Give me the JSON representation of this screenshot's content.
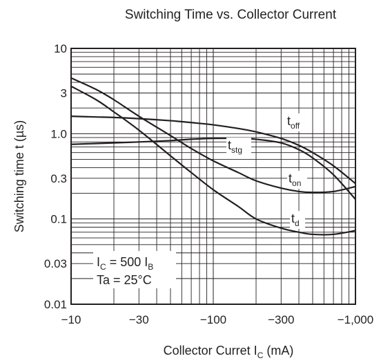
{
  "chart_data": {
    "type": "line",
    "title": "Switching Time vs. Collector Current",
    "xlabel": {
      "text": "Collector Curret  I",
      "sub": "C",
      "unit": "  (mA)"
    },
    "ylabel": "Switching time  t  (µs)",
    "xscale": "log",
    "yscale": "log",
    "xlim": [
      -10,
      -1000
    ],
    "ylim": [
      0.01,
      10
    ],
    "grid": true,
    "x_ticks": [
      {
        "value": -10,
        "label": "−10"
      },
      {
        "value": -30,
        "label": "−30"
      },
      {
        "value": -100,
        "label": "−100"
      },
      {
        "value": -300,
        "label": "−300"
      },
      {
        "value": -1000,
        "label": "−1,000"
      }
    ],
    "y_ticks": [
      {
        "value": 10,
        "label": "10"
      },
      {
        "value": 3,
        "label": "3"
      },
      {
        "value": 1,
        "label": "1.0"
      },
      {
        "value": 0.3,
        "label": "0.3"
      },
      {
        "value": 0.1,
        "label": "0.1"
      },
      {
        "value": 0.03,
        "label": "0.03"
      },
      {
        "value": 0.01,
        "label": "0.01"
      }
    ],
    "conditions": [
      {
        "main": "I",
        "sub": "C",
        "mid": " = 500 I",
        "sub2": "B"
      },
      {
        "main": "Ta = 25°C",
        "sub": "",
        "mid": "",
        "sub2": ""
      }
    ],
    "series": [
      {
        "name": "t",
        "sub": "off",
        "x": [
          -10,
          -15,
          -20,
          -30,
          -50,
          -70,
          -100,
          -150,
          -200,
          -300,
          -400,
          -500,
          -700,
          -1000
        ],
        "y": [
          1.6,
          1.57,
          1.55,
          1.5,
          1.42,
          1.35,
          1.27,
          1.15,
          1.05,
          0.88,
          0.73,
          0.6,
          0.42,
          0.26
        ]
      },
      {
        "name": "t",
        "sub": "stg",
        "x": [
          -10,
          -20,
          -30,
          -50,
          -70,
          -100,
          -150,
          -200,
          -300,
          -400,
          -500,
          -700,
          -1000
        ],
        "y": [
          0.75,
          0.78,
          0.8,
          0.83,
          0.86,
          0.88,
          0.88,
          0.86,
          0.78,
          0.65,
          0.52,
          0.33,
          0.17
        ]
      },
      {
        "name": "t",
        "sub": "on",
        "x": [
          -10,
          -15,
          -20,
          -30,
          -50,
          -70,
          -100,
          -150,
          -200,
          -300,
          -400,
          -500,
          -700,
          -1000
        ],
        "y": [
          4.5,
          3.3,
          2.5,
          1.6,
          0.95,
          0.67,
          0.48,
          0.35,
          0.28,
          0.23,
          0.21,
          0.205,
          0.21,
          0.24
        ]
      },
      {
        "name": "t",
        "sub": "d",
        "x": [
          -10,
          -15,
          -20,
          -30,
          -50,
          -70,
          -100,
          -150,
          -200,
          -300,
          -400,
          -500,
          -700,
          -1000
        ],
        "y": [
          3.6,
          2.5,
          1.8,
          1.1,
          0.55,
          0.35,
          0.22,
          0.14,
          0.1,
          0.078,
          0.07,
          0.066,
          0.066,
          0.073
        ]
      }
    ]
  }
}
